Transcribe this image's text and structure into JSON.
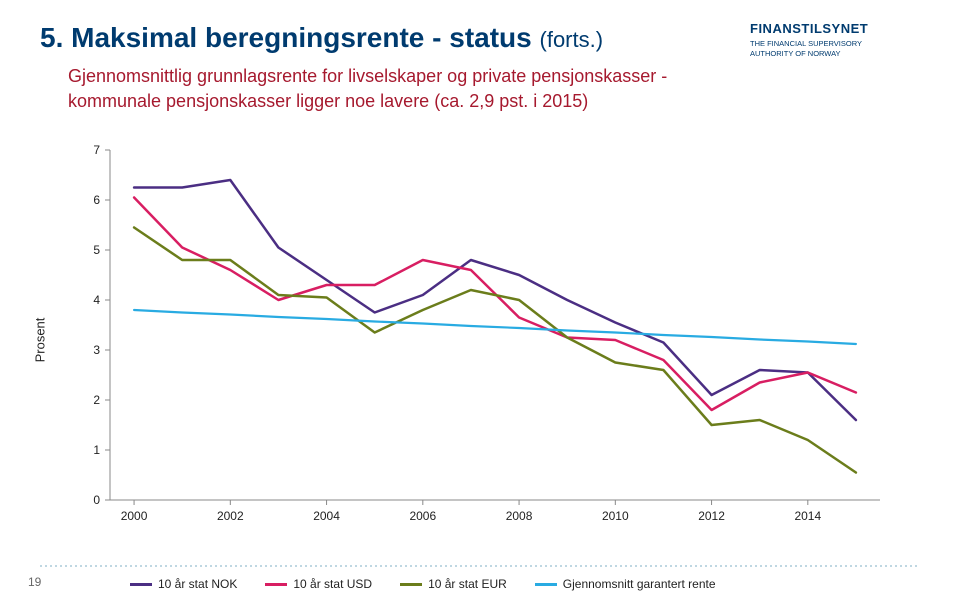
{
  "title_prefix": "5.",
  "title_main": "Maksimal beregningsrente - status",
  "title_suffix": "(forts.)",
  "subtitle": "Gjennomsnittlig grunnlagsrente for livselskaper og private pensjonskasser - kommunale pensjonskasser ligger noe lavere (ca. 2,9 pst. i 2015)",
  "page_number": "19",
  "logo": {
    "name": "FINANSTILSYNET",
    "line1": "THE FINANCIAL SUPERVISORY",
    "line2": "AUTHORITY OF NORWAY"
  },
  "chart": {
    "type": "line",
    "background_color": "#ffffff",
    "axis_color": "#888888",
    "label_color": "#222222",
    "label_fontsize": 12,
    "ylabel": "Prosent",
    "xlim": [
      1999.5,
      2015.5
    ],
    "ylim": [
      0,
      7
    ],
    "ytick_step": 1,
    "xtick_start": 2000,
    "xtick_step": 2,
    "xtick_end": 2014,
    "x_values": [
      2000,
      2001,
      2002,
      2003,
      2004,
      2005,
      2006,
      2007,
      2008,
      2009,
      2010,
      2011,
      2012,
      2013,
      2014,
      2015
    ],
    "series": [
      {
        "name": "10 år stat NOK",
        "label": "10 år stat NOK",
        "color": "#4b2e83",
        "line_width": 2.5,
        "y": [
          6.25,
          6.25,
          6.4,
          5.05,
          4.4,
          3.75,
          4.1,
          4.8,
          4.5,
          4.0,
          3.55,
          3.15,
          2.1,
          2.6,
          2.55,
          1.6
        ]
      },
      {
        "name": "10 år stat USD",
        "label": "10 år stat USD",
        "color": "#d81e62",
        "line_width": 2.5,
        "y": [
          6.05,
          5.05,
          4.6,
          4.0,
          4.3,
          4.3,
          4.8,
          4.6,
          3.65,
          3.25,
          3.2,
          2.8,
          1.8,
          2.35,
          2.55,
          2.15
        ]
      },
      {
        "name": "10 år stat EUR",
        "label": "10 år stat EUR",
        "color": "#6b7d1b",
        "line_width": 2.5,
        "y": [
          5.45,
          4.8,
          4.8,
          4.1,
          4.05,
          3.35,
          3.8,
          4.2,
          4.0,
          3.25,
          2.75,
          2.6,
          1.5,
          1.6,
          1.2,
          0.55
        ]
      },
      {
        "name": "Gjennomsnitt garantert rente",
        "label": "Gjennomsnitt garantert rente",
        "color": "#29abe2",
        "line_width": 2.2,
        "y": [
          3.8,
          3.75,
          3.71,
          3.66,
          3.62,
          3.57,
          3.53,
          3.48,
          3.44,
          3.39,
          3.35,
          3.3,
          3.26,
          3.21,
          3.17,
          3.12
        ]
      }
    ]
  }
}
